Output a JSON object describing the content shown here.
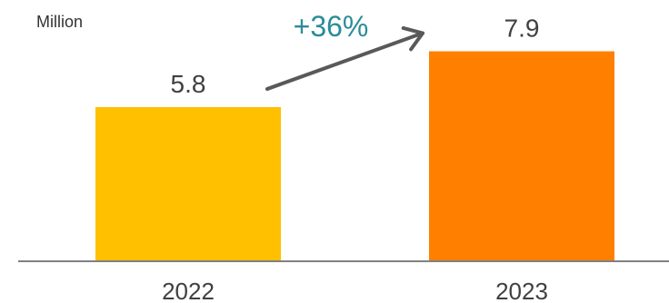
{
  "chart_data": {
    "type": "bar",
    "unit_label": "Million",
    "categories": [
      "2022",
      "2023"
    ],
    "values": [
      5.8,
      7.9
    ],
    "value_labels": [
      "5.8",
      "7.9"
    ],
    "ylim": [
      0,
      10
    ],
    "grid": false,
    "legend": "none",
    "bar_colors": [
      "#FFC000",
      "#FF8000"
    ],
    "annotation": {
      "text": "+36%",
      "from_category": "2022",
      "to_category": "2023",
      "text_color": "#2A8C9A",
      "arrow_color": "#595959"
    },
    "axis_color": "#808080"
  }
}
